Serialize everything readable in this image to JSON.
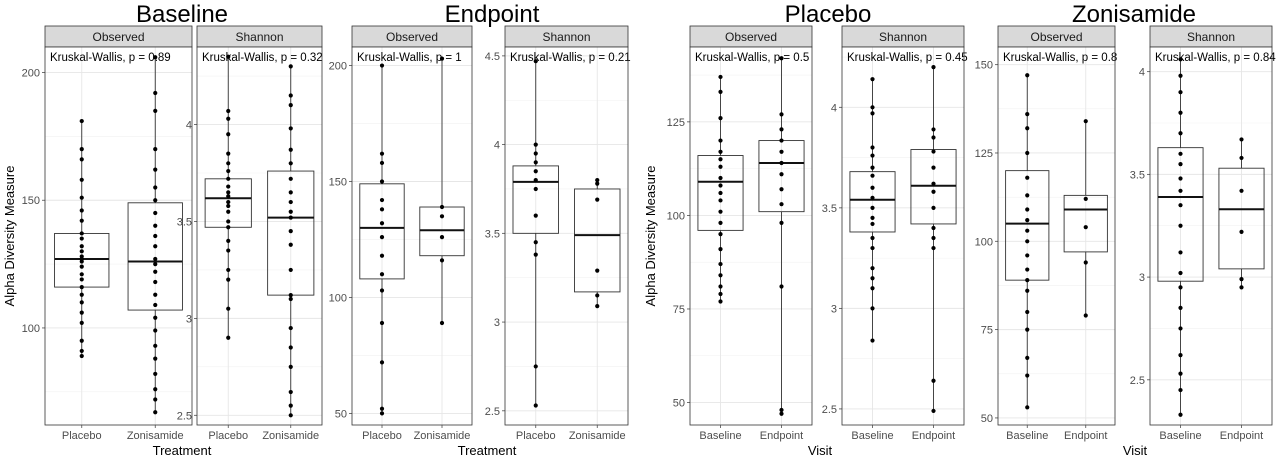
{
  "group_titles": [
    "Baseline",
    "Endpoint",
    "Placebo",
    "Zonisamide"
  ],
  "y_label": "Alpha Diversity Measure",
  "x_labels": [
    "Treatment",
    "Treatment",
    "Visit",
    "Visit"
  ],
  "chart_data": [
    {
      "type": "box",
      "group": "Baseline",
      "facet": "Observed",
      "annotation": "Kruskal-Wallis, p = 0.89",
      "categories": [
        "Placebo",
        "Zonisamide"
      ],
      "yticks": [
        100,
        150,
        200
      ],
      "ylim": [
        62,
        210
      ],
      "grid": true,
      "boxes": [
        {
          "q1": 116,
          "median": 127,
          "q3": 137,
          "min": 89,
          "max": 181,
          "points": [
            181,
            170,
            166,
            158,
            151,
            146,
            142,
            137,
            135,
            132,
            130,
            128,
            127,
            126,
            124,
            121,
            119,
            116,
            113,
            110,
            106,
            102,
            95,
            91,
            89
          ]
        },
        {
          "q1": 107,
          "median": 126,
          "q3": 149,
          "min": 67,
          "max": 206,
          "points": [
            206,
            192,
            185,
            170,
            162,
            155,
            150,
            145,
            140,
            136,
            132,
            127,
            125,
            122,
            118,
            113,
            109,
            104,
            99,
            93,
            88,
            82,
            76,
            72,
            67
          ]
        }
      ]
    },
    {
      "type": "box",
      "group": "Baseline",
      "facet": "Shannon",
      "annotation": "Kruskal-Wallis, p = 0.32",
      "categories": [
        "Placebo",
        "Zonisamide"
      ],
      "yticks": [
        2.5,
        3.0,
        3.5,
        4.0
      ],
      "ylim": [
        2.45,
        4.4
      ],
      "grid": true,
      "boxes": [
        {
          "q1": 3.47,
          "median": 3.62,
          "q3": 3.72,
          "min": 2.9,
          "max": 4.35,
          "points": [
            4.35,
            4.07,
            4.03,
            3.95,
            3.85,
            3.8,
            3.76,
            3.72,
            3.68,
            3.65,
            3.63,
            3.6,
            3.58,
            3.55,
            3.5,
            3.47,
            3.4,
            3.35,
            3.25,
            3.2,
            3.05,
            2.9
          ]
        },
        {
          "q1": 3.12,
          "median": 3.52,
          "q3": 3.76,
          "min": 2.5,
          "max": 4.3,
          "points": [
            4.3,
            4.15,
            4.1,
            3.98,
            3.87,
            3.8,
            3.72,
            3.65,
            3.6,
            3.55,
            3.52,
            3.45,
            3.38,
            3.25,
            3.12,
            3.1,
            2.95,
            2.85,
            2.75,
            2.62,
            2.55,
            2.5
          ]
        }
      ]
    },
    {
      "type": "box",
      "group": "Endpoint",
      "facet": "Observed",
      "annotation": "Kruskal-Wallis, p = 1",
      "categories": [
        "Placebo",
        "Zonisamide"
      ],
      "yticks": [
        50,
        100,
        150,
        200
      ],
      "ylim": [
        45,
        208
      ],
      "grid": true,
      "boxes": [
        {
          "q1": 108,
          "median": 130,
          "q3": 149,
          "min": 50,
          "max": 200,
          "points": [
            200,
            162,
            158,
            150,
            142,
            138,
            132,
            126,
            118,
            110,
            103,
            89,
            72,
            52,
            50
          ]
        },
        {
          "q1": 118,
          "median": 129,
          "q3": 139,
          "min": 89,
          "max": 203,
          "points": [
            203,
            139,
            135,
            126,
            116,
            89
          ]
        }
      ]
    },
    {
      "type": "box",
      "group": "Endpoint",
      "facet": "Shannon",
      "annotation": "Kruskal-Wallis, p = 0.21",
      "categories": [
        "Placebo",
        "Zonisamide"
      ],
      "yticks": [
        2.5,
        3.0,
        3.5,
        4.0,
        4.5
      ],
      "ylim": [
        2.42,
        4.55
      ],
      "grid": true,
      "boxes": [
        {
          "q1": 3.5,
          "median": 3.79,
          "q3": 3.88,
          "min": 2.53,
          "max": 4.47,
          "points": [
            4.47,
            4.0,
            3.95,
            3.9,
            3.85,
            3.8,
            3.75,
            3.6,
            3.45,
            3.38,
            2.75,
            2.53
          ]
        },
        {
          "q1": 3.17,
          "median": 3.49,
          "q3": 3.75,
          "min": 3.09,
          "max": 3.8,
          "points": [
            3.8,
            3.78,
            3.69,
            3.29,
            3.15,
            3.09
          ]
        }
      ]
    },
    {
      "type": "box",
      "group": "Placebo",
      "facet": "Observed",
      "annotation": "Kruskal-Wallis, p = 0.5",
      "categories": [
        "Baseline",
        "Endpoint"
      ],
      "yticks": [
        50,
        75,
        100,
        125
      ],
      "ylim": [
        44,
        145
      ],
      "grid": true,
      "boxes": [
        {
          "q1": 96,
          "median": 109,
          "q3": 116,
          "min": 77,
          "max": 137,
          "points": [
            137,
            133,
            126,
            120,
            117,
            115,
            113,
            110,
            108,
            106,
            104,
            101,
            98,
            95,
            91,
            87,
            84,
            81,
            79,
            77
          ]
        },
        {
          "q1": 101,
          "median": 114,
          "q3": 120,
          "min": 47,
          "max": 142,
          "points": [
            142,
            127,
            123,
            120,
            117,
            114,
            111,
            107,
            103,
            98,
            81,
            48,
            47
          ]
        }
      ]
    },
    {
      "type": "box",
      "group": "Placebo",
      "facet": "Shannon",
      "annotation": "Kruskal-Wallis, p = 0.45",
      "categories": [
        "Baseline",
        "Endpoint"
      ],
      "yticks": [
        2.5,
        3.0,
        3.5,
        4.0
      ],
      "ylim": [
        2.42,
        4.3
      ],
      "grid": true,
      "boxes": [
        {
          "q1": 3.38,
          "median": 3.54,
          "q3": 3.68,
          "min": 2.84,
          "max": 4.14,
          "points": [
            4.14,
            4.0,
            3.97,
            3.8,
            3.76,
            3.7,
            3.66,
            3.6,
            3.55,
            3.5,
            3.45,
            3.42,
            3.35,
            3.3,
            3.2,
            3.15,
            3.1,
            3.0,
            2.84
          ]
        },
        {
          "q1": 3.42,
          "median": 3.61,
          "q3": 3.79,
          "min": 2.49,
          "max": 4.2,
          "points": [
            4.2,
            3.89,
            3.85,
            3.78,
            3.7,
            3.62,
            3.58,
            3.5,
            3.4,
            3.35,
            3.3,
            2.64,
            2.49
          ]
        }
      ]
    },
    {
      "type": "box",
      "group": "Zonisamide",
      "facet": "Observed",
      "annotation": "Kruskal-Wallis, p = 0.8",
      "categories": [
        "Baseline",
        "Endpoint"
      ],
      "yticks": [
        50,
        75,
        100,
        125,
        150
      ],
      "ylim": [
        48,
        155
      ],
      "grid": true,
      "boxes": [
        {
          "q1": 89,
          "median": 105,
          "q3": 120,
          "min": 53,
          "max": 147,
          "points": [
            147,
            136,
            132,
            125,
            118,
            113,
            109,
            106,
            103,
            100,
            96,
            92,
            89,
            86,
            80,
            75,
            67,
            62,
            53
          ]
        },
        {
          "q1": 97,
          "median": 109,
          "q3": 113,
          "min": 79,
          "max": 134,
          "points": [
            134,
            112,
            104,
            94,
            79
          ]
        }
      ]
    },
    {
      "type": "box",
      "group": "Zonisamide",
      "facet": "Shannon",
      "annotation": "Kruskal-Wallis, p = 0.84",
      "categories": [
        "Baseline",
        "Endpoint"
      ],
      "yticks": [
        2.5,
        3.0,
        3.5,
        4.0
      ],
      "ylim": [
        2.28,
        4.12
      ],
      "grid": true,
      "boxes": [
        {
          "q1": 2.98,
          "median": 3.39,
          "q3": 3.63,
          "min": 2.33,
          "max": 4.06,
          "points": [
            4.06,
            3.98,
            3.9,
            3.8,
            3.7,
            3.6,
            3.55,
            3.48,
            3.42,
            3.35,
            3.25,
            3.12,
            3.02,
            2.95,
            2.85,
            2.75,
            2.62,
            2.53,
            2.45,
            2.33
          ]
        },
        {
          "q1": 3.04,
          "median": 3.33,
          "q3": 3.53,
          "min": 2.95,
          "max": 3.67,
          "points": [
            3.67,
            3.58,
            3.42,
            3.22,
            2.99,
            2.95
          ]
        }
      ]
    }
  ]
}
